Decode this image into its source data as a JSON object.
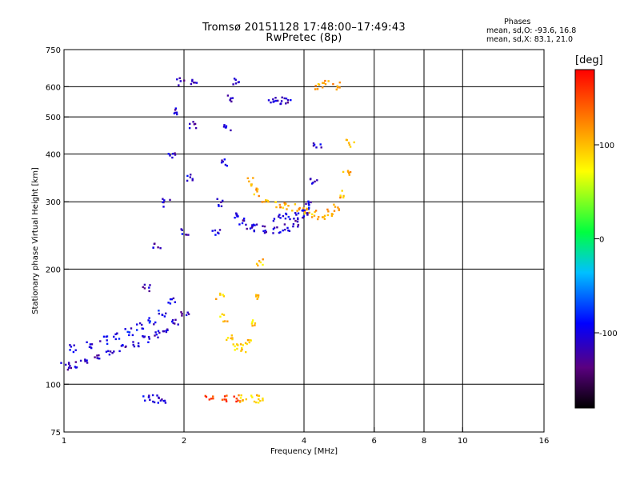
{
  "header": {
    "title": "Tromsø 20151128 17:48:00–17:49:43",
    "subtitle": "RwPretec (8p)"
  },
  "stats": {
    "heading": "Phases",
    "o_line": "mean, sd,O: -93.6, 16.8",
    "x_line": "mean, sd,X: 83.1, 21.0"
  },
  "colorbar": {
    "unit": "[deg]",
    "ticks": [
      {
        "value": 100,
        "label": "100"
      },
      {
        "value": 0,
        "label": "0"
      },
      {
        "value": -100,
        "label": "-100"
      }
    ],
    "range": [
      -180,
      180
    ]
  },
  "chart_data": {
    "type": "scatter",
    "xlabel": "Frequency [MHz]",
    "ylabel": "Stationary phase Virtual Height [km]",
    "x_scale": "log",
    "y_scale": "log",
    "xlim": [
      1,
      16
    ],
    "ylim": [
      75,
      750
    ],
    "xticks": [
      {
        "value": 1,
        "label": "1"
      },
      {
        "value": 2,
        "label": "2"
      },
      {
        "value": 4,
        "label": "4"
      },
      {
        "value": 6,
        "label": "6"
      },
      {
        "value": 8,
        "label": "8"
      },
      {
        "value": 10,
        "label": "10"
      },
      {
        "value": 16,
        "label": "16"
      }
    ],
    "yticks": [
      {
        "value": 75,
        "label": "75"
      },
      {
        "value": 100,
        "label": "100"
      },
      {
        "value": 200,
        "label": "200"
      },
      {
        "value": 300,
        "label": "300"
      },
      {
        "value": 400,
        "label": "400"
      },
      {
        "value": 500,
        "label": "500"
      },
      {
        "value": 600,
        "label": "600"
      },
      {
        "value": 750,
        "label": "750"
      }
    ],
    "grid_x": [
      2,
      4,
      6,
      8,
      10
    ],
    "grid_y": [
      100,
      200,
      300,
      400,
      500,
      600
    ],
    "color_by": "phase_deg",
    "traces": [
      {
        "x": [
          1.0,
          1.05,
          1.12,
          1.2,
          1.3,
          1.4,
          1.5,
          1.6,
          1.7,
          1.8,
          1.9,
          2.0
        ],
        "y": [
          112,
          113,
          115,
          118,
          121,
          125,
          128,
          132,
          136,
          141,
          146,
          152
        ],
        "phase": -110
      },
      {
        "x": [
          1.05,
          1.15,
          1.25,
          1.35,
          1.45,
          1.55,
          1.65,
          1.75,
          1.85
        ],
        "y": [
          125,
          128,
          131,
          134,
          138,
          142,
          147,
          155,
          165
        ],
        "phase": -100
      },
      {
        "x": [
          1.6,
          1.7,
          1.8,
          1.85,
          1.9,
          1.95
        ],
        "y": [
          180,
          230,
          300,
          400,
          520,
          620
        ],
        "phase": -115
      },
      {
        "x": [
          2.0,
          2.05,
          2.1,
          2.12
        ],
        "y": [
          250,
          350,
          480,
          620
        ],
        "phase": -110
      },
      {
        "x": [
          2.4,
          2.45,
          2.5,
          2.55,
          2.6,
          2.7
        ],
        "y": [
          250,
          300,
          380,
          470,
          560,
          620
        ],
        "phase": -105
      },
      {
        "x": [
          2.7,
          2.8,
          2.9,
          3.0,
          3.2,
          3.4,
          3.6,
          3.8,
          4.0
        ],
        "y": [
          275,
          268,
          262,
          258,
          255,
          255,
          258,
          265,
          280
        ],
        "phase": -110
      },
      {
        "x": [
          3.4,
          3.6,
          3.8,
          4.0,
          4.1,
          4.2,
          4.3
        ],
        "y": [
          275,
          276,
          278,
          285,
          300,
          340,
          420
        ],
        "phase": -105
      },
      {
        "x": [
          3.3,
          3.45,
          3.6
        ],
        "y": [
          560,
          555,
          550
        ],
        "phase": -115
      },
      {
        "x": [
          2.45,
          2.5,
          2.6,
          2.7,
          2.8,
          2.9,
          3.0,
          3.05,
          3.1
        ],
        "y": [
          170,
          150,
          132,
          126,
          125,
          130,
          145,
          170,
          210
        ],
        "phase": 95
      },
      {
        "x": [
          2.9,
          3.0,
          3.2,
          3.4,
          3.6,
          3.8
        ],
        "y": [
          340,
          320,
          305,
          298,
          295,
          292
        ],
        "phase": 110
      },
      {
        "x": [
          4.0,
          4.2,
          4.4,
          4.6,
          4.8,
          5.0,
          5.1,
          5.2
        ],
        "y": [
          285,
          280,
          278,
          282,
          290,
          315,
          360,
          430
        ],
        "phase": 105
      },
      {
        "x": [
          4.3,
          4.5,
          4.8
        ],
        "y": [
          600,
          615,
          605
        ],
        "phase": 110
      },
      {
        "x": [
          1.6,
          1.7,
          1.75
        ],
        "y": [
          92,
          92,
          92
        ],
        "phase": -105
      },
      {
        "x": [
          2.3,
          2.5,
          2.7
        ],
        "y": [
          92,
          92,
          92
        ],
        "phase": 150
      },
      {
        "x": [
          2.8,
          3.0,
          3.1
        ],
        "y": [
          92,
          92,
          92
        ],
        "phase": 95
      }
    ]
  }
}
